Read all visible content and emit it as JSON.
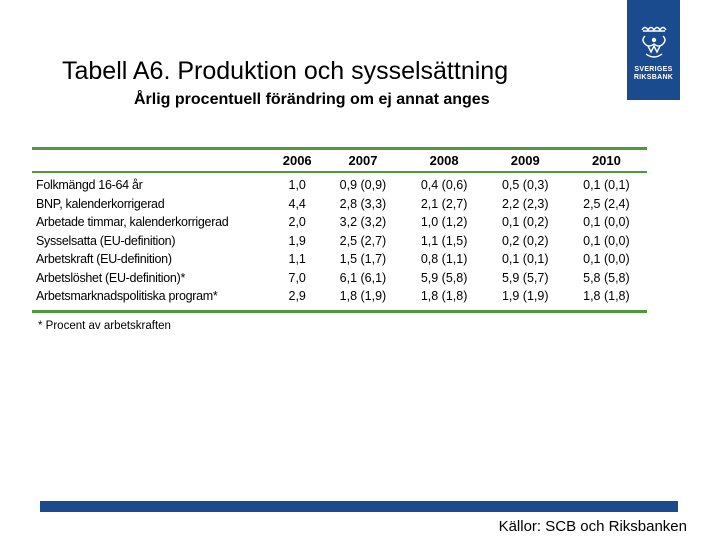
{
  "title": "Tabell A6. Produktion och sysselsättning",
  "subtitle": "Årlig procentuell förändring om ej annat anges",
  "logo": {
    "line1": "SVERIGES",
    "line2": "RIKSBANK",
    "icon": "crown-emblem-icon",
    "color": "#1b4b8f"
  },
  "accent_color": "#4e9a3a",
  "table": {
    "headers": [
      "",
      "2006",
      "2007",
      "2008",
      "2009",
      "2010"
    ],
    "rows": [
      {
        "label": "Folkmängd 16-64 år",
        "values": [
          "1,0",
          "0,9 (0,9)",
          "0,4 (0,6)",
          "0,5 (0,3)",
          "0,1 (0,1)"
        ]
      },
      {
        "label": "BNP, kalenderkorrigerad",
        "values": [
          "4,4",
          "2,8 (3,3)",
          "2,1 (2,7)",
          "2,2 (2,3)",
          "2,5 (2,4)"
        ]
      },
      {
        "label": "Arbetade timmar, kalenderkorrigerad",
        "values": [
          "2,0",
          "3,2 (3,2)",
          "1,0 (1,2)",
          "0,1 (0,2)",
          "0,1 (0,0)"
        ]
      },
      {
        "label": "Sysselsatta (EU-definition)",
        "values": [
          "1,9",
          "2,5 (2,7)",
          "1,1 (1,5)",
          "0,2 (0,2)",
          "0,1 (0,0)"
        ]
      },
      {
        "label": "Arbetskraft (EU-definition)",
        "values": [
          "1,1",
          "1,5 (1,7)",
          "0,8 (1,1)",
          "0,1 (0,1)",
          "0,1 (0,0)"
        ]
      },
      {
        "label": "Arbetslöshet (EU-definition)*",
        "values": [
          "7,0",
          "6,1 (6,1)",
          "5,9 (5,8)",
          "5,9 (5,7)",
          "5,8 (5,8)"
        ]
      },
      {
        "label": "Arbetsmarknadspolitiska program*",
        "values": [
          "2,9",
          "1,8 (1,9)",
          "1,8 (1,8)",
          "1,9 (1,9)",
          "1,8 (1,8)"
        ]
      }
    ]
  },
  "footnote": "* Procent av arbetskraften",
  "source": "Källor: SCB och Riksbanken"
}
